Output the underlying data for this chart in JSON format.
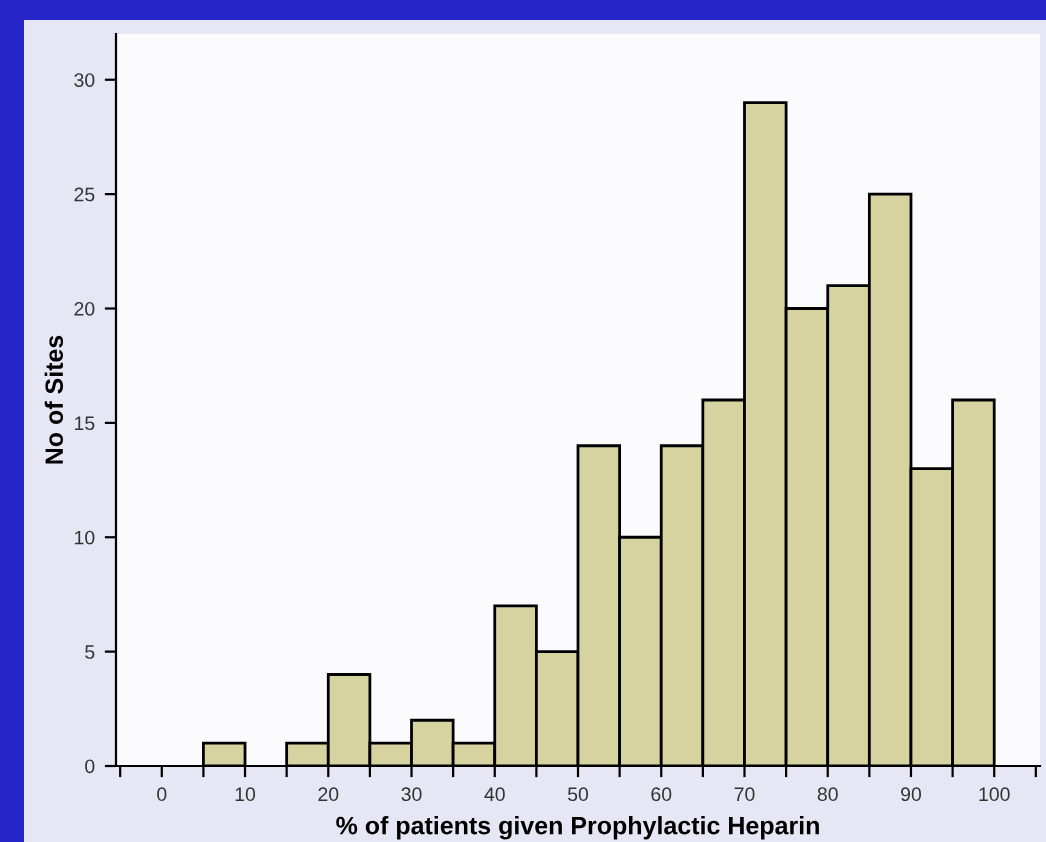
{
  "chart_data": {
    "type": "histogram",
    "xlabel": "% of patients given Prophylactic Heparin",
    "ylabel": "No of Sites",
    "bins": [
      5,
      10,
      15,
      20,
      25,
      30,
      35,
      40,
      45,
      50,
      55,
      60,
      65,
      70,
      75,
      80,
      85,
      90,
      95,
      100
    ],
    "values": [
      1,
      0,
      1,
      4,
      1,
      2,
      1,
      7,
      5,
      14,
      10,
      14,
      16,
      29,
      20,
      21,
      25,
      13,
      16
    ],
    "color": "#d6d3a0",
    "xlim": [
      -5.5,
      105.5
    ],
    "xticks": [
      {
        "value": -5,
        "label": null
      },
      0,
      {
        "value": 5,
        "label": null
      },
      10,
      {
        "value": 15,
        "label": null
      },
      20,
      {
        "value": 25,
        "label": null
      },
      30,
      {
        "value": 35,
        "label": null
      },
      40,
      {
        "value": 45,
        "label": null
      },
      50,
      {
        "value": 55,
        "label": null
      },
      60,
      {
        "value": 65,
        "label": null
      },
      70,
      {
        "value": 75,
        "label": null
      },
      80,
      {
        "value": 85,
        "label": null
      },
      90,
      {
        "value": 95,
        "label": null
      },
      100,
      {
        "value": 105,
        "label": null
      }
    ],
    "ylim": [
      0,
      32
    ],
    "yticks": [
      0,
      5,
      10,
      15,
      20,
      25,
      30
    ],
    "grid": false,
    "legend": false
  }
}
